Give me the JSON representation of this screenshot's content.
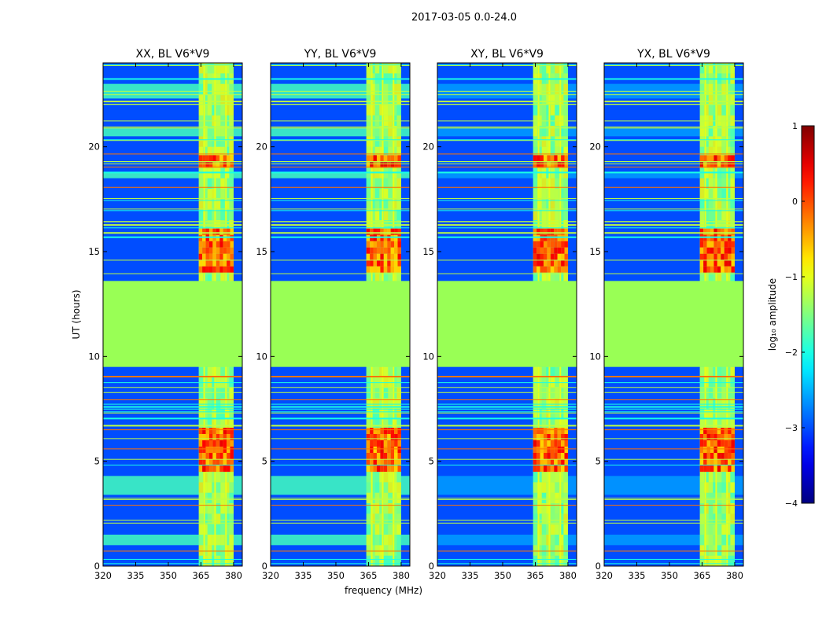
{
  "figure": {
    "suptitle": "2017-03-05 0.0-24.0"
  },
  "chart_data": [
    {
      "type": "heatmap",
      "title": "XX, BL V6*V9",
      "xlabel": "",
      "ylabel": "UT (hours)",
      "xlim": [
        320,
        384
      ],
      "ylim": [
        0,
        24
      ],
      "xticks": [
        320,
        335,
        350,
        365,
        380
      ],
      "yticks": [
        0,
        5,
        10,
        15,
        20
      ]
    },
    {
      "type": "heatmap",
      "title": "YY, BL V6*V9",
      "xlabel": "frequency (MHz)",
      "ylabel": "",
      "xlim": [
        320,
        384
      ],
      "ylim": [
        0,
        24
      ],
      "xticks": [
        320,
        335,
        350,
        365,
        380
      ],
      "yticks": [
        0,
        5,
        10,
        15,
        20
      ]
    },
    {
      "type": "heatmap",
      "title": "XY, BL V6*V9",
      "xlabel": "",
      "ylabel": "",
      "xlim": [
        320,
        384
      ],
      "ylim": [
        0,
        24
      ],
      "xticks": [
        320,
        335,
        350,
        365,
        380
      ],
      "yticks": [
        0,
        5,
        10,
        15,
        20
      ]
    },
    {
      "type": "heatmap",
      "title": "YX, BL V6*V9",
      "xlabel": "",
      "ylabel": "",
      "xlim": [
        320,
        384
      ],
      "ylim": [
        0,
        24
      ],
      "xticks": [
        320,
        335,
        350,
        365,
        380
      ],
      "yticks": [
        0,
        5,
        10,
        15,
        20
      ]
    }
  ],
  "colorbar": {
    "label": "log₁₀ amplitude",
    "vmin": -4,
    "vmax": 1,
    "ticks": [
      {
        "value": 1,
        "label": "1"
      },
      {
        "value": 0,
        "label": "0"
      },
      {
        "value": -1,
        "label": "−1"
      },
      {
        "value": -2,
        "label": "−2"
      },
      {
        "value": -3,
        "label": "−3"
      },
      {
        "value": -4,
        "label": "−4"
      }
    ],
    "colormap": "jet"
  },
  "heatmap_structure": {
    "background_level": -3.0,
    "flagged_interval_hours": [
      9.5,
      13.6
    ],
    "flagged_level": -1.0,
    "rfi_band_mhz": [
      364,
      380
    ],
    "rfi_band_level": -1.5,
    "rfi_channels_mhz": [
      366.5,
      371.5,
      376.5
    ],
    "rfi_bursts_hours": [
      [
        4.5,
        6.5
      ],
      [
        14.0,
        16.0
      ],
      [
        19.0,
        19.6
      ]
    ],
    "rfi_burst_level": 0.2
  },
  "colors": {
    "flagged": "#99ff55",
    "background": "#1f45ff"
  }
}
